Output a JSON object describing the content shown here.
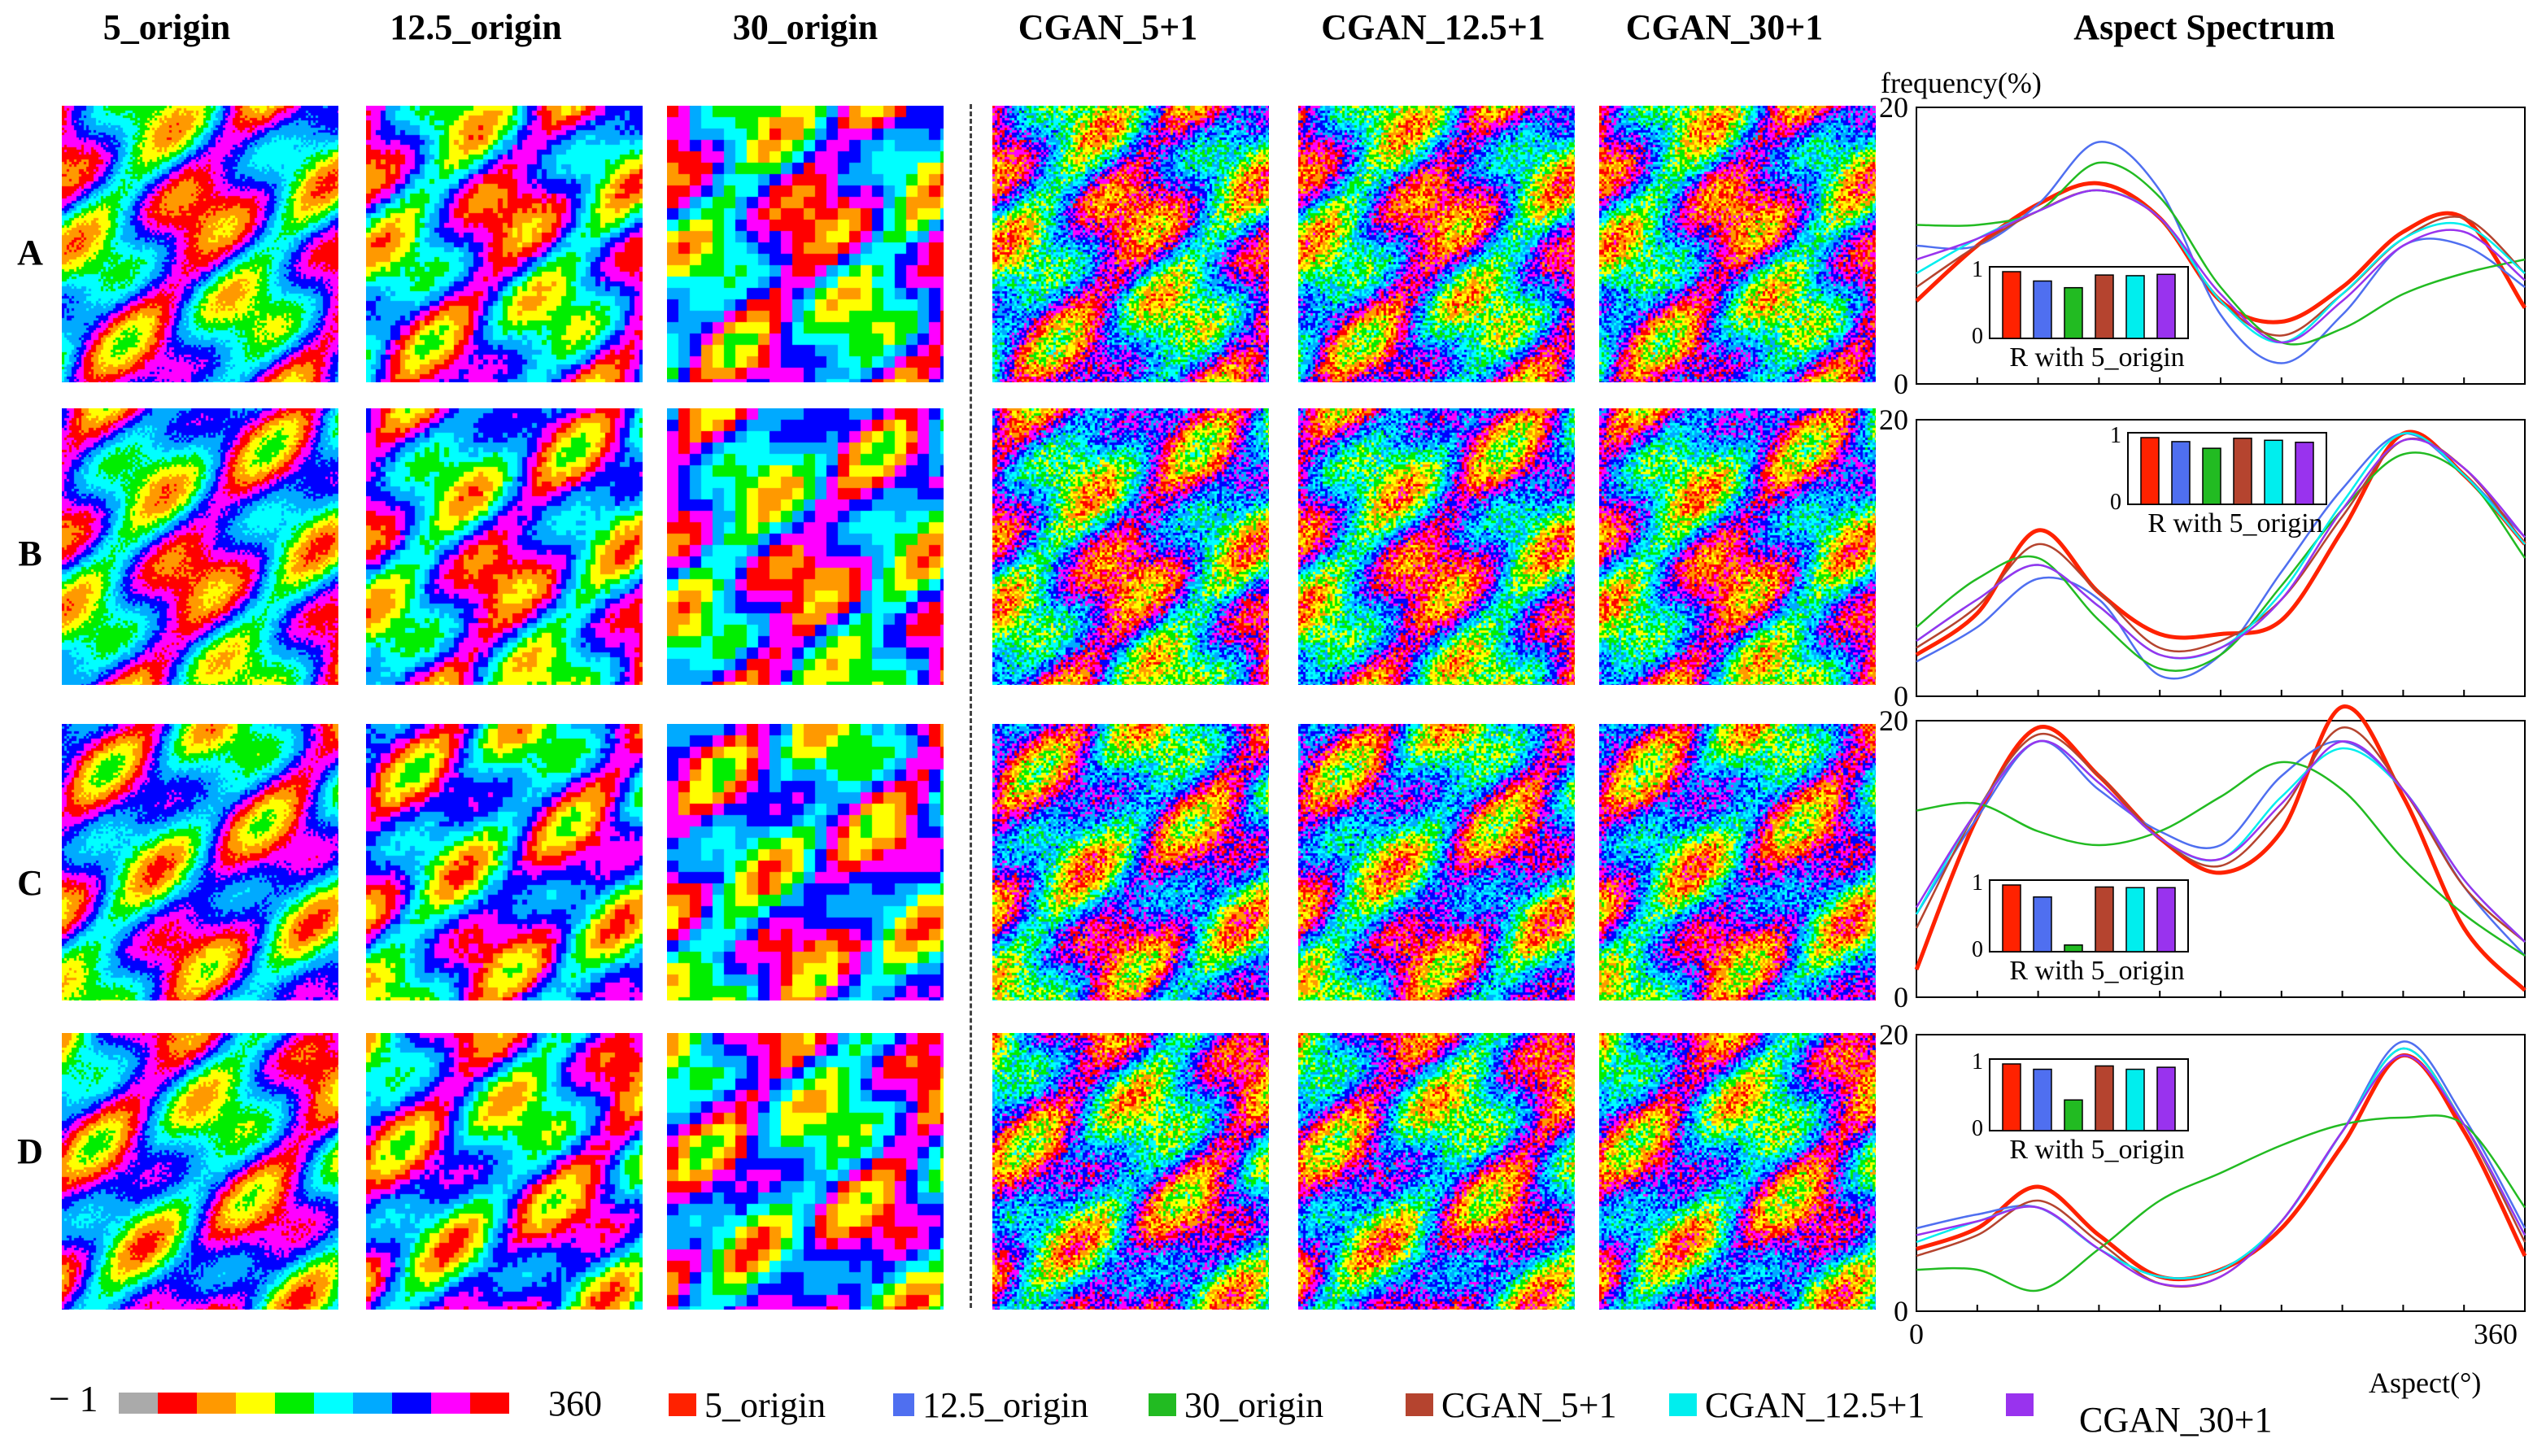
{
  "columns": [
    "5_origin",
    "12.5_origin",
    "30_origin",
    "CGAN_5+1",
    "CGAN_12.5+1",
    "CGAN_30+1",
    "Aspect Spectrum"
  ],
  "rows": [
    "A",
    "B",
    "C",
    "D"
  ],
  "colorbar": {
    "min_label": "− 1",
    "max_label": "360",
    "colors": [
      "#aaaaaa",
      "#ff0000",
      "#ff9900",
      "#ffff00",
      "#00ee00",
      "#00ffff",
      "#00aaff",
      "#0000ff",
      "#ff00ff",
      "#ff0000"
    ]
  },
  "chart_data": {
    "type": "line",
    "title": "Aspect Spectrum",
    "ylabel": "frequency(%)",
    "xlabel": "Aspect(°)",
    "xlim": [
      0,
      360
    ],
    "ylim": [
      0,
      20
    ],
    "x_ticks": [
      "0",
      "360"
    ],
    "y_ticks": [
      "0",
      "20"
    ],
    "inset": {
      "label": "R with 5_origin",
      "ylim": [
        0,
        1
      ],
      "y_ticks": [
        "0",
        "1"
      ]
    },
    "series_styles": [
      {
        "name": "5_origin",
        "color": "#ff2200"
      },
      {
        "name": "12.5_origin",
        "color": "#4f6ff0"
      },
      {
        "name": "30_origin",
        "color": "#22bb22"
      },
      {
        "name": "CGAN_5+1",
        "color": "#b5442f"
      },
      {
        "name": "CGAN_12.5+1",
        "color": "#00eeee"
      },
      {
        "name": "CGAN_30+1",
        "color": "#9933ee"
      }
    ],
    "panels": [
      {
        "row": "A",
        "x": [
          0,
          36,
          72,
          108,
          144,
          180,
          216,
          252,
          288,
          324,
          360
        ],
        "series": [
          {
            "name": "5_origin",
            "values": [
              6,
              10,
              13,
              14.5,
              12,
              6,
              4.5,
              7,
              11,
              12,
              5.5
            ]
          },
          {
            "name": "12.5_origin",
            "values": [
              10,
              10,
              13,
              17.5,
              14,
              5,
              1.5,
              5,
              10,
              10,
              7
            ]
          },
          {
            "name": "30_origin",
            "values": [
              11.5,
              11.5,
              12.5,
              16,
              13.5,
              7,
              3,
              4,
              6.5,
              8,
              9
            ]
          },
          {
            "name": "CGAN_5+1",
            "values": [
              7,
              10,
              12.5,
              14,
              12,
              6,
              3.5,
              6.5,
              10.5,
              12,
              8
            ]
          },
          {
            "name": "CGAN_12.5+1",
            "values": [
              8,
              10.5,
              12.5,
              14,
              12,
              6,
              3,
              6.5,
              10.5,
              11.5,
              8
            ]
          },
          {
            "name": "CGAN_30+1",
            "values": [
              9,
              10.5,
              12.5,
              14,
              12,
              6.5,
              3,
              6,
              10,
              11,
              7.5
            ]
          }
        ],
        "r_values": [
          1.0,
          0.86,
          0.76,
          0.95,
          0.94,
          0.96
        ],
        "inset_position": "lower-left"
      },
      {
        "row": "B",
        "x": [
          0,
          36,
          72,
          108,
          144,
          180,
          216,
          252,
          288,
          324,
          360
        ],
        "series": [
          {
            "name": "5_origin",
            "values": [
              3,
              6,
              12,
              7.5,
              4.5,
              4.5,
              5.5,
              12,
              19,
              16,
              11
            ]
          },
          {
            "name": "12.5_origin",
            "values": [
              2.5,
              5,
              8.5,
              7,
              1.5,
              3,
              9,
              15,
              19,
              16,
              11.5
            ]
          },
          {
            "name": "30_origin",
            "values": [
              5,
              8.5,
              10,
              5.5,
              2,
              3,
              8,
              13.5,
              17.5,
              16,
              10
            ]
          },
          {
            "name": "CGAN_5+1",
            "values": [
              3.5,
              6.5,
              11,
              7.5,
              3.5,
              4,
              7,
              13,
              18.5,
              16.5,
              11
            ]
          },
          {
            "name": "CGAN_12.5+1",
            "values": [
              4,
              7,
              9.5,
              6.5,
              3,
              3.5,
              7.5,
              14,
              19,
              16,
              11
            ]
          },
          {
            "name": "CGAN_30+1",
            "values": [
              4,
              7,
              9.5,
              6.5,
              3,
              3.5,
              7,
              13.5,
              18.5,
              16.5,
              11.5
            ]
          }
        ],
        "r_values": [
          1.0,
          0.94,
          0.84,
          0.99,
          0.96,
          0.93
        ],
        "inset_position": "upper-middle"
      },
      {
        "row": "C",
        "x": [
          0,
          36,
          72,
          108,
          144,
          180,
          216,
          252,
          288,
          324,
          360
        ],
        "series": [
          {
            "name": "5_origin",
            "values": [
              2,
              13,
              19.5,
              16,
              11.5,
              9,
              12,
              21,
              14.5,
              5,
              0.5
            ]
          },
          {
            "name": "12.5_origin",
            "values": [
              6,
              13,
              18.5,
              15,
              12,
              11,
              16,
              18.5,
              15,
              8,
              3
            ]
          },
          {
            "name": "30_origin",
            "values": [
              13.5,
              14,
              12,
              11,
              12,
              14.5,
              17,
              15,
              10,
              6,
              3
            ]
          },
          {
            "name": "CGAN_5+1",
            "values": [
              5,
              13.5,
              19,
              16,
              11.5,
              9.5,
              13.5,
              19.5,
              15,
              8,
              4
            ]
          },
          {
            "name": "CGAN_12.5+1",
            "values": [
              6,
              13.5,
              18.5,
              15.5,
              11.5,
              10,
              14.5,
              18,
              15,
              8.5,
              4
            ]
          },
          {
            "name": "CGAN_30+1",
            "values": [
              6.5,
              13.5,
              18.5,
              15.5,
              11.5,
              10,
              14,
              18.5,
              15,
              8.5,
              4
            ]
          }
        ],
        "r_values": [
          1.0,
          0.82,
          0.1,
          0.97,
          0.96,
          0.96
        ],
        "inset_position": "lower-left"
      },
      {
        "row": "D",
        "x": [
          0,
          36,
          72,
          108,
          144,
          180,
          216,
          252,
          288,
          324,
          360
        ],
        "series": [
          {
            "name": "5_origin",
            "values": [
              4.5,
              6,
              9,
              5.5,
              2.5,
              3,
              6,
              12,
              18.5,
              13,
              4
            ]
          },
          {
            "name": "12.5_origin",
            "values": [
              6,
              7,
              7.5,
              4.5,
              2.5,
              3,
              6.5,
              13,
              19.5,
              14,
              6
            ]
          },
          {
            "name": "30_origin",
            "values": [
              3,
              3,
              1.5,
              4.5,
              8,
              10,
              12,
              13.5,
              14,
              13.5,
              7.5
            ]
          },
          {
            "name": "CGAN_5+1",
            "values": [
              4,
              5.5,
              8,
              5,
              2,
              2.5,
              6.5,
              13,
              19,
              13.5,
              5
            ]
          },
          {
            "name": "CGAN_12.5+1",
            "values": [
              5,
              6.5,
              7.5,
              4.5,
              2.5,
              3,
              6.5,
              13,
              19,
              13.5,
              5.5
            ]
          },
          {
            "name": "CGAN_30+1",
            "values": [
              5.5,
              6.5,
              7.5,
              4.5,
              2,
              2.5,
              6.5,
              13,
              18.5,
              13.5,
              5.5
            ]
          }
        ],
        "r_values": [
          1.0,
          0.92,
          0.46,
          0.97,
          0.92,
          0.95
        ],
        "inset_position": "upper-left"
      }
    ]
  }
}
